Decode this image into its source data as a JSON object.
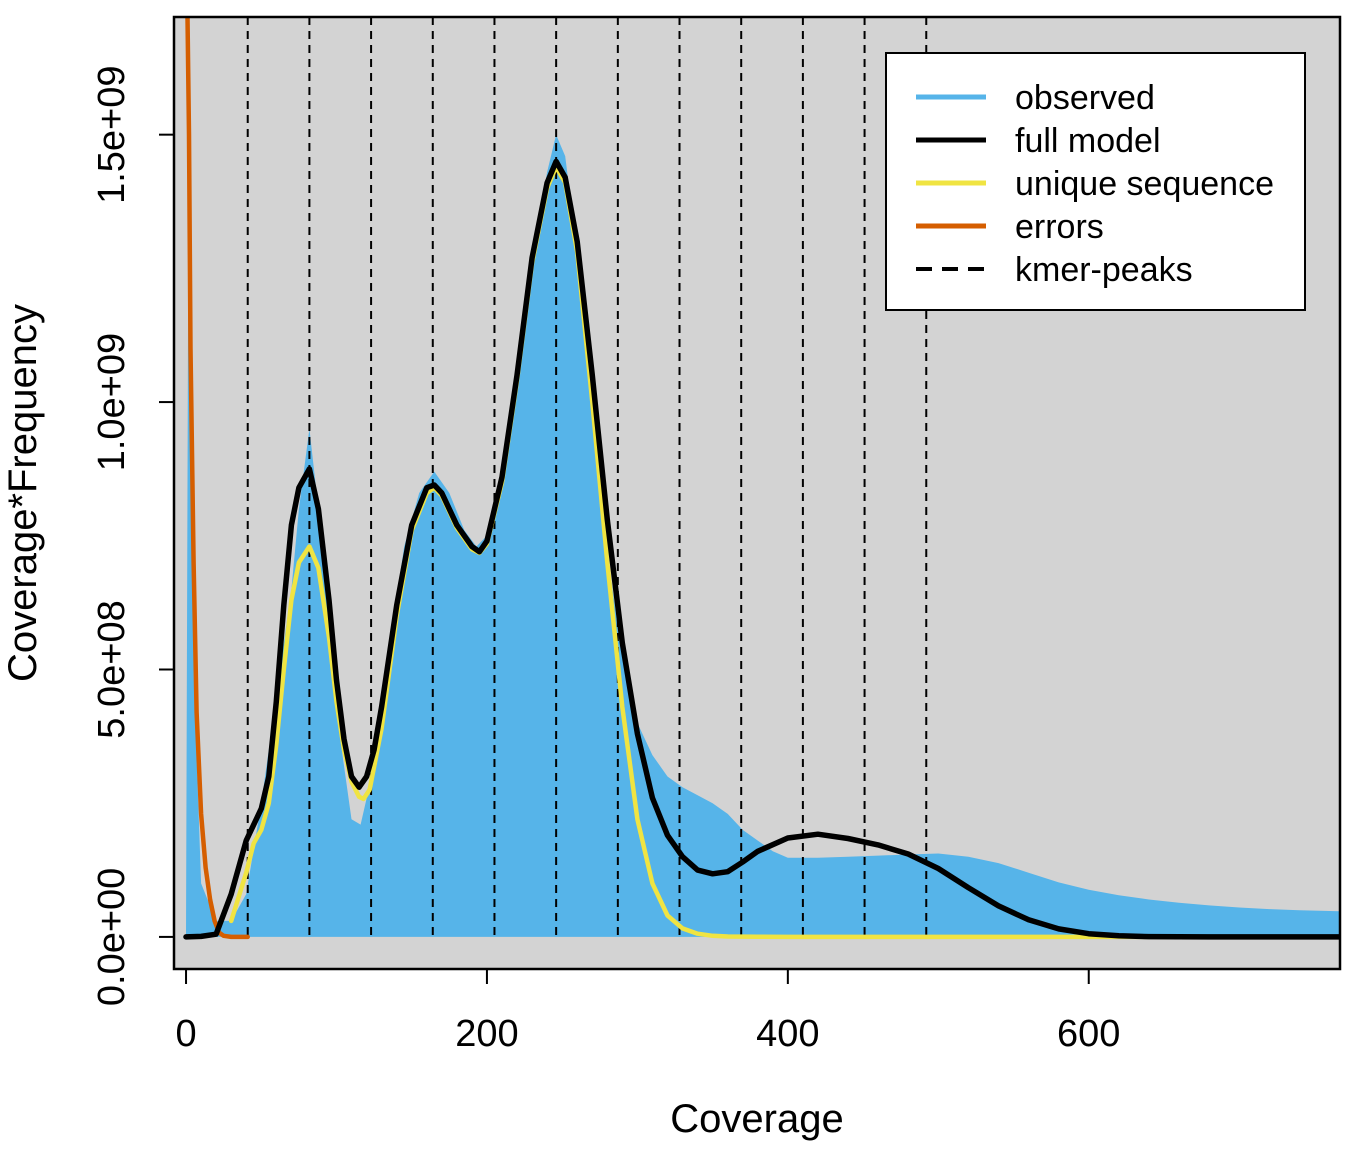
{
  "chart_data": {
    "type": "area",
    "xlabel": "Coverage",
    "ylabel": "Coverage*Frequency",
    "xlim": [
      -8,
      767
    ],
    "ylim": [
      -60000000,
      1720000000
    ],
    "x_ticks": [
      0,
      200,
      400,
      600
    ],
    "x_tick_labels": [
      "0",
      "200",
      "400",
      "600"
    ],
    "y_ticks": [
      0,
      500000000,
      1000000000,
      1500000000
    ],
    "y_tick_labels": [
      "0.0e+00",
      "5.0e+08",
      "1.0e+09",
      "1.5e+09"
    ],
    "plot_background": "#d3d3d3",
    "grid": false,
    "legend_position": "top-right",
    "kmer_peaks": [
      41,
      82,
      123,
      164,
      205,
      246,
      287,
      328,
      369,
      410,
      451,
      492
    ],
    "series": [
      {
        "name": "observed",
        "color": "#56b4e9",
        "style": "filled",
        "x": [
          0,
          2,
          5,
          10,
          20,
          30,
          40,
          50,
          60,
          70,
          75,
          82,
          88,
          95,
          100,
          110,
          116,
          125,
          135,
          145,
          155,
          165,
          175,
          185,
          193,
          200,
          210,
          220,
          230,
          240,
          246,
          252,
          260,
          270,
          280,
          290,
          300,
          310,
          320,
          330,
          340,
          350,
          360,
          370,
          380,
          390,
          400,
          420,
          440,
          460,
          480,
          500,
          520,
          540,
          560,
          580,
          600,
          620,
          640,
          660,
          680,
          700,
          720,
          740,
          767
        ],
        "y": [
          0,
          1700000000,
          500000000,
          100000000,
          30000000,
          30000000,
          80000000,
          250000000,
          450000000,
          650000000,
          800000000,
          950000000,
          800000000,
          580000000,
          420000000,
          220000000,
          210000000,
          320000000,
          540000000,
          730000000,
          830000000,
          870000000,
          830000000,
          760000000,
          730000000,
          750000000,
          860000000,
          1050000000,
          1270000000,
          1430000000,
          1500000000,
          1460000000,
          1280000000,
          1000000000,
          720000000,
          520000000,
          400000000,
          340000000,
          300000000,
          280000000,
          265000000,
          250000000,
          230000000,
          200000000,
          180000000,
          160000000,
          148000000,
          148000000,
          150000000,
          152000000,
          154000000,
          156000000,
          150000000,
          138000000,
          120000000,
          102000000,
          88000000,
          78000000,
          70000000,
          64000000,
          59000000,
          55000000,
          52000000,
          50000000,
          48000000
        ]
      },
      {
        "name": "full model",
        "color": "#000000",
        "style": "line",
        "x": [
          0,
          10,
          20,
          30,
          40,
          50,
          55,
          60,
          65,
          70,
          75,
          82,
          88,
          95,
          100,
          105,
          110,
          115,
          120,
          125,
          130,
          140,
          150,
          160,
          165,
          170,
          180,
          190,
          195,
          200,
          210,
          220,
          230,
          240,
          246,
          252,
          260,
          270,
          280,
          290,
          300,
          310,
          320,
          330,
          340,
          350,
          360,
          370,
          380,
          400,
          420,
          440,
          460,
          480,
          500,
          520,
          540,
          560,
          580,
          600,
          620,
          640,
          680,
          720,
          767
        ],
        "y": [
          0,
          1000000,
          5000000,
          80000000,
          180000000,
          240000000,
          300000000,
          440000000,
          620000000,
          770000000,
          840000000,
          875000000,
          800000000,
          630000000,
          480000000,
          370000000,
          300000000,
          280000000,
          300000000,
          350000000,
          430000000,
          620000000,
          770000000,
          840000000,
          845000000,
          830000000,
          770000000,
          730000000,
          720000000,
          740000000,
          860000000,
          1050000000,
          1270000000,
          1410000000,
          1450000000,
          1420000000,
          1300000000,
          1050000000,
          780000000,
          550000000,
          380000000,
          260000000,
          190000000,
          150000000,
          125000000,
          118000000,
          122000000,
          140000000,
          160000000,
          185000000,
          192000000,
          184000000,
          172000000,
          155000000,
          128000000,
          92000000,
          58000000,
          32000000,
          15000000,
          6000000,
          2000000,
          500000,
          0,
          0,
          0
        ]
      },
      {
        "name": "unique sequence",
        "color": "#f0e442",
        "style": "line",
        "x": [
          30,
          40,
          45,
          50,
          55,
          60,
          65,
          70,
          75,
          82,
          88,
          95,
          100,
          105,
          110,
          115,
          118,
          122,
          130,
          140,
          150,
          160,
          165,
          170,
          180,
          190,
          195,
          200,
          210,
          220,
          230,
          240,
          246,
          252,
          260,
          270,
          280,
          290,
          300,
          310,
          320,
          330,
          340,
          350,
          360,
          380,
          400,
          500,
          600,
          767
        ],
        "y": [
          30000000,
          120000000,
          175000000,
          200000000,
          250000000,
          360000000,
          500000000,
          630000000,
          700000000,
          730000000,
          690000000,
          560000000,
          440000000,
          350000000,
          290000000,
          262000000,
          258000000,
          275000000,
          390000000,
          600000000,
          760000000,
          830000000,
          840000000,
          825000000,
          765000000,
          725000000,
          718000000,
          735000000,
          850000000,
          1040000000,
          1260000000,
          1400000000,
          1440000000,
          1410000000,
          1280000000,
          1000000000,
          700000000,
          430000000,
          220000000,
          100000000,
          40000000,
          16000000,
          6000000,
          2000000,
          800000,
          300000,
          100000,
          0,
          0,
          0
        ]
      },
      {
        "name": "errors",
        "color": "#d55e00",
        "style": "line",
        "x": [
          1,
          2,
          3,
          5,
          7,
          10,
          13,
          16,
          19,
          22,
          25,
          30,
          35,
          41
        ],
        "y": [
          1720000000,
          1500000000,
          1100000000,
          700000000,
          420000000,
          230000000,
          130000000,
          70000000,
          30000000,
          8000000,
          2000000,
          0,
          0,
          0
        ]
      },
      {
        "name": "kmer-peaks",
        "color": "#000000",
        "style": "dashed"
      }
    ]
  }
}
